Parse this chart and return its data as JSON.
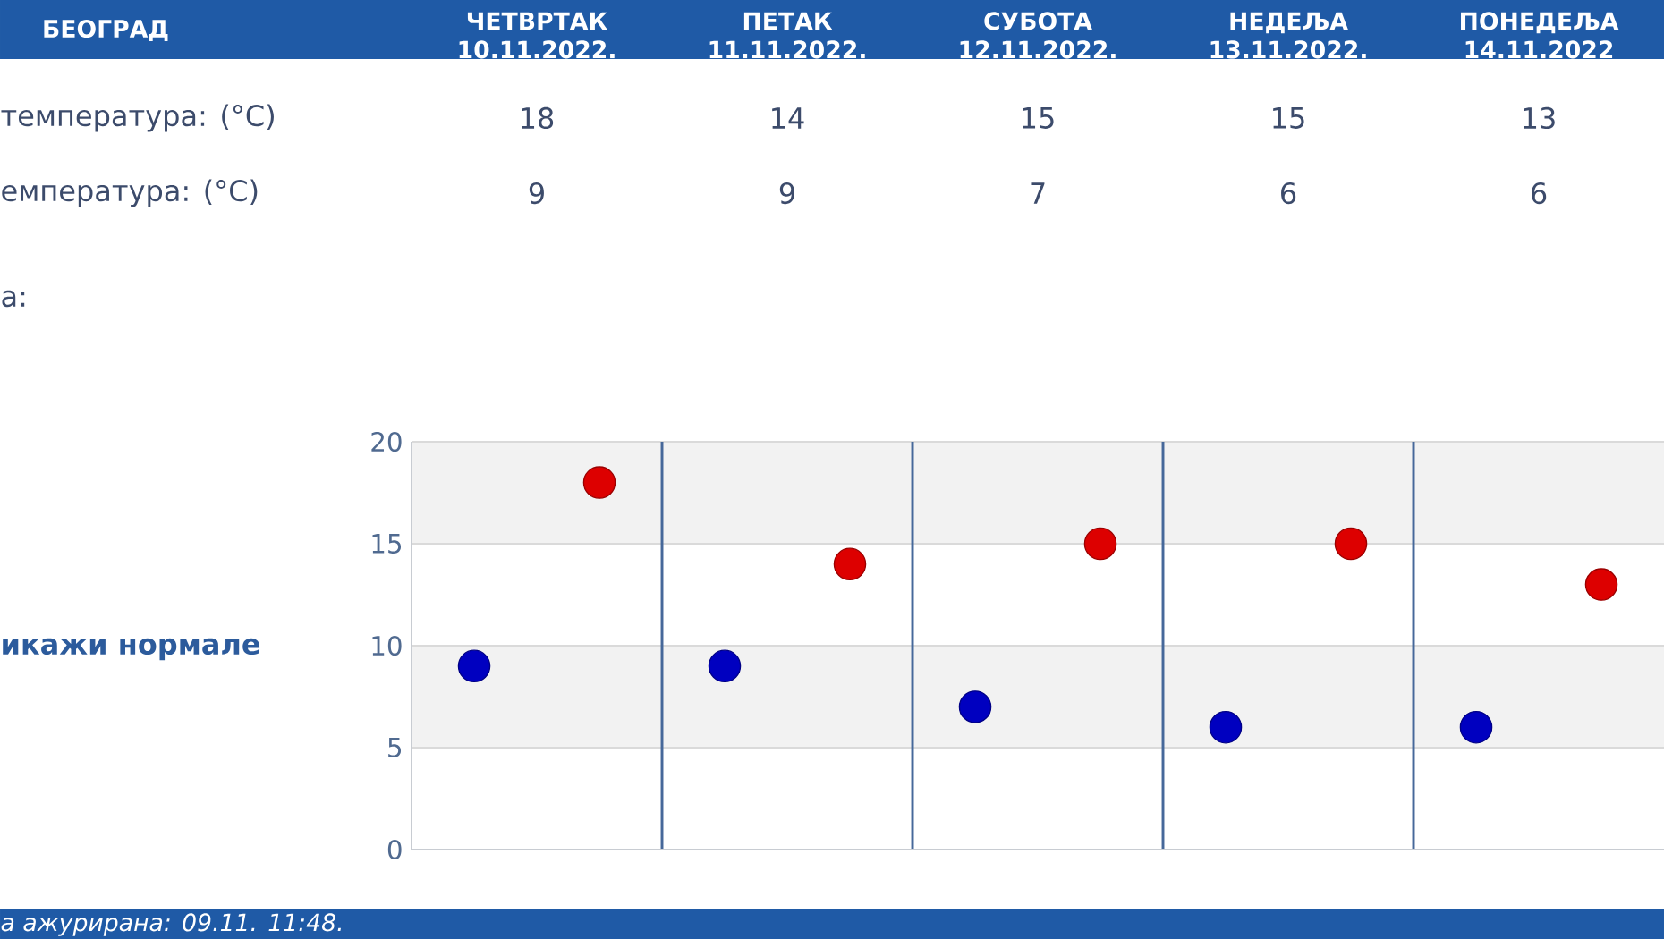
{
  "chart_data": {
    "type": "scatter",
    "title": "БЕОГРАД",
    "categories": [
      null,
      null,
      null,
      null,
      null
    ],
    "series": [
      {
        "color": "#dd0000",
        "values": [
          18,
          14,
          15,
          15,
          13
        ]
      },
      {
        "color": "#0000c0",
        "values": [
          9,
          9,
          7,
          6,
          6
        ]
      }
    ],
    "ylim": [
      0,
      20
    ],
    "yticks": [
      0,
      5,
      10,
      15,
      20
    ],
    "grid": true,
    "bands": [
      {
        "axis": "y",
        "from": 5,
        "to": 10,
        "color": "#f2f2f2"
      },
      {
        "axis": "y",
        "from": 15,
        "to": 20,
        "color": "#f2f2f2"
      }
    ],
    "marker": "circle",
    "data_labels": true,
    "annotations": [
      "ЧЕТВРТАК 10.11.2022.",
      "ПЕТАК 11.11.2022.",
      "СУБОТА 12.11.2022.",
      "НЕДЕЉА 13.11.2022.",
      "ПОНЕДЕЉА 14.11.2022",
      "температура: (°C)",
      "емпература: (°C)",
      "а:",
      "икажи нормале",
      "а ажурирана: 09.11. 11:48."
    ]
  }
}
